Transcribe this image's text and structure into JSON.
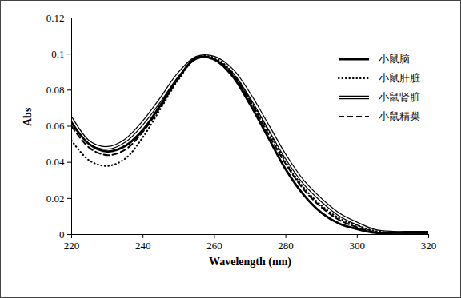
{
  "chart_data": {
    "type": "line",
    "x_label": "Wavelength (nm)",
    "y_label": "Abs",
    "x": [
      220,
      225,
      230,
      235,
      240,
      245,
      250,
      255,
      260,
      265,
      270,
      275,
      280,
      285,
      290,
      295,
      300,
      305,
      310,
      315,
      320
    ],
    "series": [
      {
        "name": "小鼠脑",
        "color": "#000000",
        "line_style": "solid",
        "values": [
          0.062,
          0.05,
          0.046,
          0.049,
          0.058,
          0.072,
          0.087,
          0.098,
          0.097,
          0.088,
          0.072,
          0.054,
          0.036,
          0.022,
          0.012,
          0.006,
          0.003,
          0.001,
          0.001,
          0.001,
          0.001
        ]
      },
      {
        "name": "小鼠肝脏",
        "color": "#000000",
        "line_style": "dotted",
        "values": [
          0.052,
          0.041,
          0.038,
          0.042,
          0.054,
          0.07,
          0.086,
          0.098,
          0.098,
          0.09,
          0.075,
          0.058,
          0.04,
          0.026,
          0.016,
          0.009,
          0.005,
          0.002,
          0.001,
          0.001,
          0.001
        ]
      },
      {
        "name": "小鼠肾脏",
        "color": "#000000",
        "line_style": "double",
        "values": [
          0.064,
          0.051,
          0.048,
          0.052,
          0.062,
          0.075,
          0.089,
          0.098,
          0.098,
          0.091,
          0.077,
          0.06,
          0.043,
          0.029,
          0.019,
          0.011,
          0.006,
          0.002,
          0.001,
          0.001,
          0.001
        ]
      },
      {
        "name": "小鼠精巢",
        "color": "#000000",
        "line_style": "dashed",
        "values": [
          0.06,
          0.048,
          0.044,
          0.047,
          0.057,
          0.071,
          0.087,
          0.098,
          0.097,
          0.089,
          0.074,
          0.056,
          0.039,
          0.025,
          0.015,
          0.008,
          0.004,
          0.001,
          0.001,
          0.001,
          0.001
        ]
      }
    ],
    "xlim": [
      220,
      320
    ],
    "xticks": [
      220,
      240,
      260,
      280,
      300,
      320
    ],
    "ylim": [
      0,
      0.12
    ],
    "yticks": [
      0,
      0.02,
      0.04,
      0.06,
      0.08,
      0.1,
      0.12
    ],
    "grid": false,
    "legend": "top-right"
  }
}
